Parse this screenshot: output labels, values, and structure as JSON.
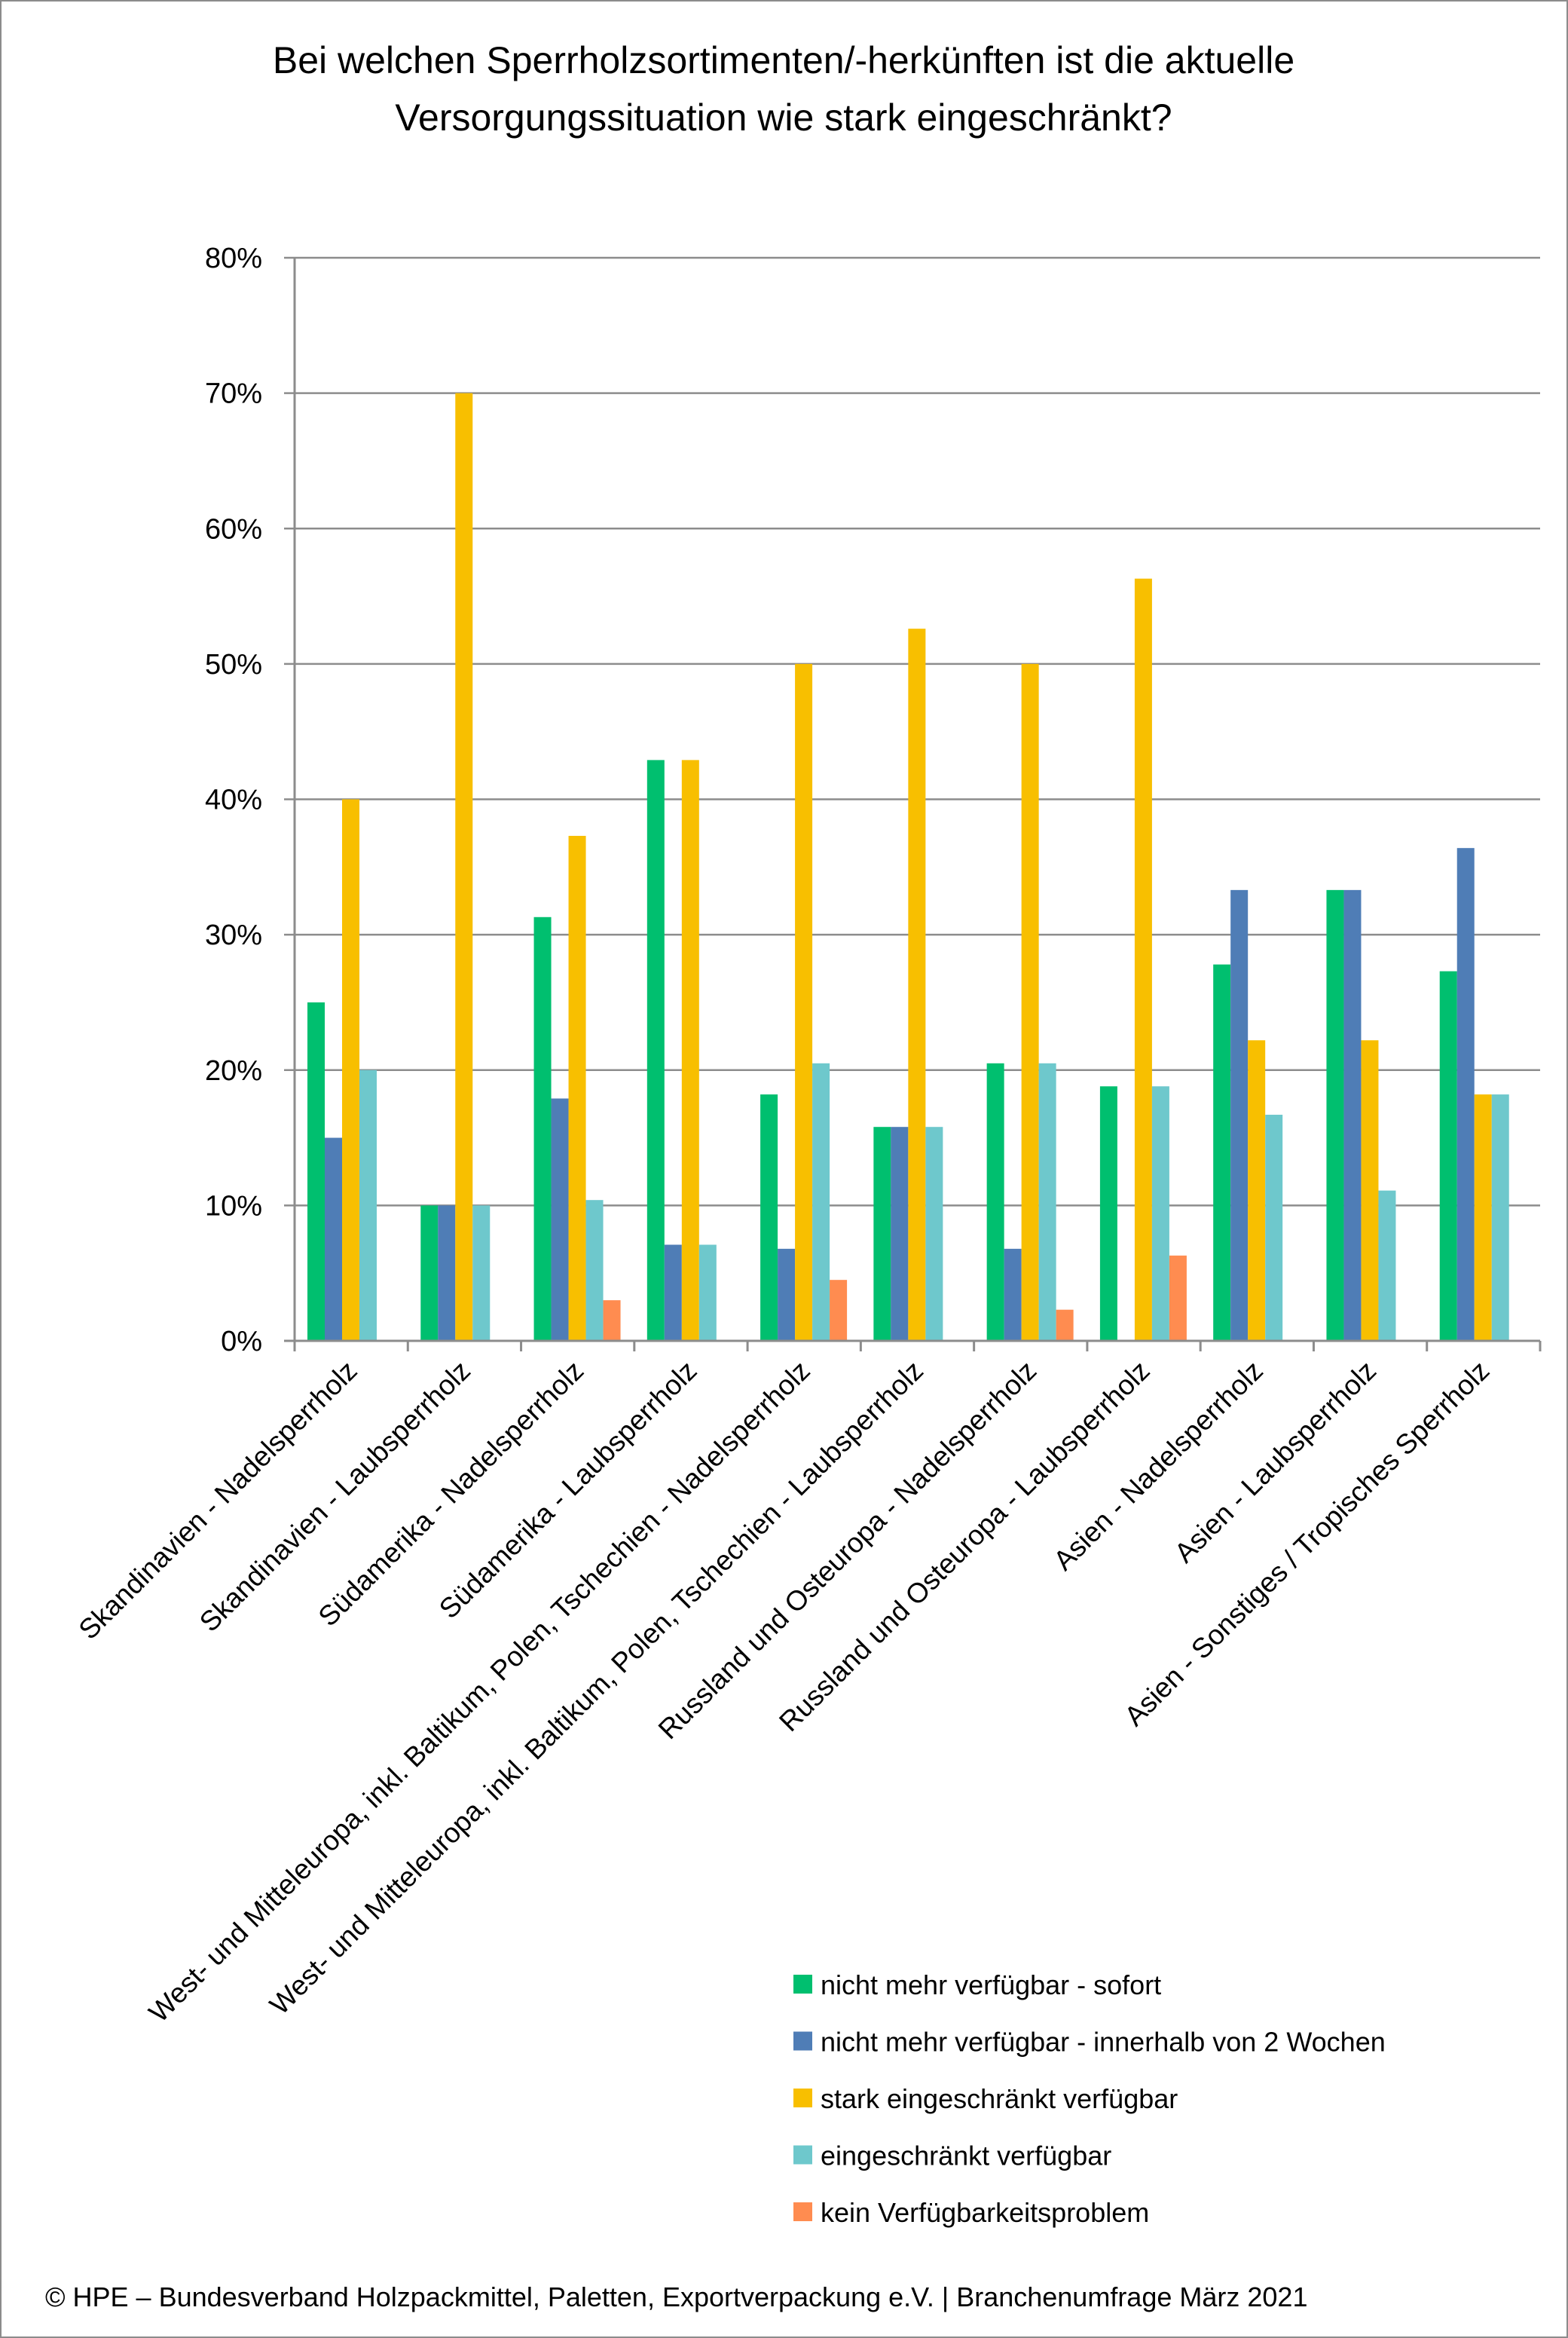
{
  "chart_data": {
    "type": "bar",
    "title": "Bei welchen Sperrholzsortimenten/-herkünften ist die aktuelle Versorgungssituation wie stark eingeschränkt?",
    "title_lines": [
      "Bei welchen Sperrholzsortimenten/-herkünften ist die aktuelle",
      "Versorgungssituation wie stark eingeschränkt?"
    ],
    "xlabel": "",
    "ylabel": "",
    "ylim": [
      0,
      80
    ],
    "y_ticks": [
      0,
      10,
      20,
      30,
      40,
      50,
      60,
      70,
      80
    ],
    "y_tick_labels": [
      "0%",
      "10%",
      "20%",
      "30%",
      "40%",
      "50%",
      "60%",
      "70%",
      "80%"
    ],
    "grid": true,
    "legend_position": "bottom-right",
    "categories": [
      "Skandinavien - Nadelsperrholz",
      "Skandinavien - Laubsperrholz",
      "Südamerika - Nadelsperrholz",
      "Südamerika - Laubsperrholz",
      "West- und Mitteleuropa, inkl. Baltikum, Polen, Tschechien - Nadelsperrholz",
      "West- und Mitteleuropa, inkl. Baltikum, Polen, Tschechien - Laubsperrholz",
      "Russland und Osteuropa - Nadelsperrholz",
      "Russland und Osteuropa - Laubsperrholz",
      "Asien - Nadelsperrholz",
      "Asien - Laubsperrholz",
      "Asien - Sonstiges / Tropisches Sperrholz"
    ],
    "series": [
      {
        "name": "nicht mehr verfügbar - sofort",
        "color": "#00BF6F",
        "values": [
          25.0,
          10.0,
          31.3,
          42.9,
          18.2,
          15.8,
          20.5,
          18.8,
          27.8,
          33.3,
          27.3
        ]
      },
      {
        "name": "nicht mehr verfügbar -  innerhalb von 2 Wochen",
        "color": "#4F7DB6",
        "values": [
          15.0,
          10.0,
          17.9,
          7.1,
          6.8,
          15.8,
          6.8,
          0,
          33.3,
          33.3,
          36.4
        ]
      },
      {
        "name": "stark eingeschränkt verfügbar",
        "color": "#F8BF00",
        "values": [
          40.0,
          70.0,
          37.3,
          42.9,
          50.0,
          52.6,
          50.0,
          56.3,
          22.2,
          22.2,
          18.2
        ]
      },
      {
        "name": "eingeschränkt verfügbar",
        "color": "#6EC8CC",
        "values": [
          20.0,
          10.0,
          10.4,
          7.1,
          20.5,
          15.8,
          20.5,
          18.8,
          16.7,
          11.1,
          18.2
        ]
      },
      {
        "name": "kein Verfügbarkeitsproblem",
        "color": "#FF8C50",
        "values": [
          0,
          0,
          3.0,
          0,
          4.5,
          0,
          2.3,
          6.3,
          0,
          0,
          0
        ]
      }
    ],
    "footer": "© HPE – Bundesverband Holzpackmittel, Paletten, Exportverpackung e.V.  | Branchenumfrage März 2021"
  },
  "colors": {
    "axis": "#8c8c8c",
    "grid": "#8c8c8c",
    "frame": "#8c8c8c"
  }
}
